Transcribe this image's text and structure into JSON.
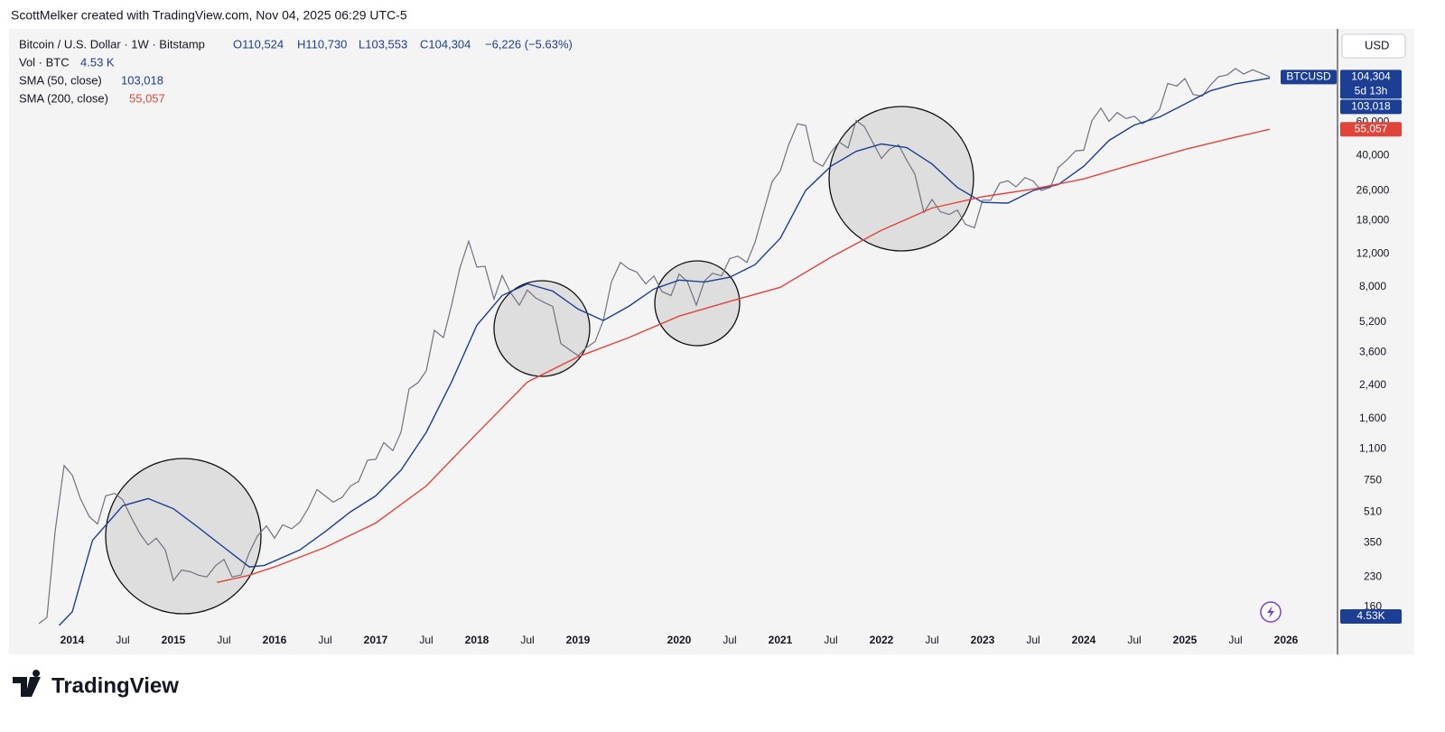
{
  "header": "ScottMelker created with TradingView.com, Nov 04, 2025 06:29 UTC-5",
  "logo": "TradingView",
  "chart_data": {
    "type": "line",
    "log_scale": true,
    "grid": false,
    "currency": "USD",
    "xlim": [
      2013.375,
      2026.5
    ],
    "ylim": [
      127,
      188000
    ],
    "xticks": [
      2014,
      {
        "value": 2014.5,
        "label": "Jul"
      },
      2015,
      {
        "value": 2015.5,
        "label": "Jul"
      },
      2016,
      {
        "value": 2016.5,
        "label": "Jul"
      },
      2017,
      {
        "value": 2017.5,
        "label": "Jul"
      },
      2018,
      {
        "value": 2018.5,
        "label": "Jul"
      },
      2019,
      2020,
      {
        "value": 2020.5,
        "label": "Jul"
      },
      2021,
      {
        "value": 2021.5,
        "label": "Jul"
      },
      2022,
      {
        "value": 2022.5,
        "label": "Jul"
      },
      2023,
      {
        "value": 2023.5,
        "label": "Jul"
      },
      2024,
      {
        "value": 2024.5,
        "label": "Jul"
      },
      2025,
      {
        "value": 2025.5,
        "label": "Jul"
      },
      2026
    ],
    "yticks": [
      160,
      230,
      350,
      510,
      750,
      {
        "value": 1100,
        "label": "1,100"
      },
      {
        "value": 1600,
        "label": "1,600"
      },
      {
        "value": 2400,
        "label": "2,400"
      },
      {
        "value": 3600,
        "label": "3,600"
      },
      {
        "value": 5200,
        "label": "5,200"
      },
      {
        "value": 8000,
        "label": "8,000"
      },
      {
        "value": 12000,
        "label": "12,000"
      },
      {
        "value": 18000,
        "label": "18,000"
      },
      {
        "value": 26000,
        "label": "26,000"
      },
      {
        "value": 40000,
        "label": "40,000"
      },
      {
        "value": 60000,
        "label": "60,000"
      }
    ],
    "legend": {
      "symbol": "Bitcoin / U.S. Dollar · 1W · Bitstamp",
      "open": "O110,524",
      "high": "H110,730",
      "low": "L103,553",
      "close": "C104,304",
      "change": "−6,226 (−5.63%)",
      "volume_name": "Vol · BTC",
      "volume": "4.53 K"
    },
    "volume_label": "4.53K",
    "series": [
      {
        "name": "BTCUSD",
        "color": "#6f7380",
        "last_label": "104,304",
        "countdown": "5d 13h",
        "x": [
          2013.67,
          2013.75,
          2013.83,
          2013.92,
          2014.0,
          2014.08,
          2014.17,
          2014.25,
          2014.33,
          2014.42,
          2014.5,
          2014.58,
          2014.67,
          2014.75,
          2014.83,
          2014.92,
          2015.0,
          2015.08,
          2015.17,
          2015.25,
          2015.33,
          2015.42,
          2015.5,
          2015.58,
          2015.67,
          2015.75,
          2015.83,
          2015.92,
          2016.0,
          2016.08,
          2016.17,
          2016.25,
          2016.33,
          2016.42,
          2016.5,
          2016.58,
          2016.67,
          2016.75,
          2016.83,
          2016.92,
          2017.0,
          2017.08,
          2017.17,
          2017.25,
          2017.33,
          2017.42,
          2017.5,
          2017.58,
          2017.67,
          2017.75,
          2017.83,
          2017.92,
          2018.0,
          2018.08,
          2018.17,
          2018.25,
          2018.33,
          2018.42,
          2018.5,
          2018.58,
          2018.67,
          2018.75,
          2018.83,
          2018.92,
          2019.0,
          2019.08,
          2019.17,
          2019.25,
          2019.33,
          2019.42,
          2019.5,
          2019.58,
          2019.67,
          2019.75,
          2019.83,
          2019.92,
          2020.0,
          2020.08,
          2020.17,
          2020.25,
          2020.33,
          2020.42,
          2020.5,
          2020.58,
          2020.67,
          2020.75,
          2020.83,
          2020.92,
          2021.0,
          2021.08,
          2021.17,
          2021.25,
          2021.33,
          2021.42,
          2021.5,
          2021.58,
          2021.67,
          2021.75,
          2021.83,
          2021.92,
          2022.0,
          2022.08,
          2022.17,
          2022.25,
          2022.33,
          2022.42,
          2022.5,
          2022.58,
          2022.67,
          2022.75,
          2022.83,
          2022.92,
          2023.0,
          2023.08,
          2023.17,
          2023.25,
          2023.33,
          2023.42,
          2023.5,
          2023.58,
          2023.67,
          2023.75,
          2023.83,
          2023.92,
          2024.0,
          2024.08,
          2024.17,
          2024.25,
          2024.33,
          2024.42,
          2024.5,
          2024.58,
          2024.67,
          2024.75,
          2024.83,
          2024.92,
          2025.0,
          2025.08,
          2025.17,
          2025.25,
          2025.33,
          2025.42,
          2025.5,
          2025.58,
          2025.67,
          2025.75,
          2025.84
        ],
        "values": [
          130,
          140,
          400,
          900,
          800,
          600,
          480,
          440,
          620,
          640,
          590,
          480,
          390,
          340,
          370,
          320,
          220,
          250,
          245,
          235,
          230,
          265,
          285,
          230,
          236,
          310,
          380,
          430,
          370,
          435,
          415,
          450,
          530,
          670,
          620,
          575,
          610,
          700,
          740,
          960,
          970,
          1190,
          1080,
          1350,
          2300,
          2480,
          2870,
          4700,
          4300,
          6400,
          10000,
          14000,
          10200,
          10300,
          6900,
          9200,
          7500,
          6400,
          7700,
          7000,
          6600,
          6300,
          4000,
          3700,
          3450,
          3800,
          4100,
          5300,
          8500,
          10800,
          10000,
          9600,
          8300,
          9150,
          7550,
          7200,
          9350,
          8550,
          6400,
          8600,
          9450,
          9150,
          11300,
          11650,
          10800,
          13800,
          19700,
          29000,
          33100,
          45200,
          58800,
          57700,
          37300,
          35000,
          41500,
          47100,
          43800,
          61300,
          57000,
          46300,
          38500,
          43200,
          45500,
          37700,
          31800,
          19900,
          23300,
          20100,
          19400,
          20500,
          17200,
          16500,
          23100,
          23100,
          28500,
          29300,
          27200,
          30500,
          29200,
          26000,
          27000,
          34500,
          37700,
          42300,
          42600,
          61100,
          71300,
          60600,
          67500,
          62700,
          64600,
          58900,
          63300,
          70200,
          96400,
          93400,
          102400,
          84300,
          82500,
          94200,
          104600,
          107100,
          115800,
          108200,
          114000,
          109500,
          104304
        ]
      },
      {
        "name": "SMA (50, close)",
        "color": "#1c3f94",
        "last_label": "103,018",
        "x": [
          2013.87,
          2014.0,
          2014.2,
          2014.5,
          2014.75,
          2015.0,
          2015.25,
          2015.5,
          2015.75,
          2015.9,
          2016.25,
          2016.5,
          2016.75,
          2017.0,
          2017.25,
          2017.5,
          2017.75,
          2018.0,
          2018.25,
          2018.5,
          2018.75,
          2019.0,
          2019.25,
          2019.5,
          2019.75,
          2020.0,
          2020.25,
          2020.5,
          2020.75,
          2021.0,
          2021.25,
          2021.5,
          2021.75,
          2022.0,
          2022.25,
          2022.5,
          2022.75,
          2023.0,
          2023.25,
          2023.5,
          2023.75,
          2024.0,
          2024.25,
          2024.5,
          2024.75,
          2025.0,
          2025.25,
          2025.5,
          2025.84
        ],
        "values": [
          127,
          150,
          360,
          550,
          600,
          530,
          420,
          330,
          260,
          265,
          320,
          400,
          510,
          620,
          850,
          1350,
          2500,
          5000,
          7200,
          8300,
          7600,
          6100,
          5300,
          6300,
          7800,
          8700,
          8500,
          9000,
          10500,
          14500,
          26000,
          35000,
          42000,
          46000,
          44000,
          36000,
          27000,
          22500,
          22300,
          26000,
          28000,
          35000,
          48000,
          58000,
          64000,
          75000,
          88000,
          96000,
          103018
        ]
      },
      {
        "name": "SMA (200, close)",
        "color": "#e0443a",
        "last_label": "55,057",
        "x": [
          2015.43,
          2015.75,
          2016.0,
          2016.5,
          2017.0,
          2017.5,
          2018.0,
          2018.5,
          2019.0,
          2019.5,
          2020.0,
          2020.5,
          2021.0,
          2021.5,
          2022.0,
          2022.5,
          2023.0,
          2023.5,
          2024.0,
          2024.5,
          2025.0,
          2025.5,
          2025.84
        ],
        "values": [
          215,
          235,
          260,
          330,
          445,
          700,
          1330,
          2500,
          3400,
          4300,
          5600,
          6700,
          7960,
          11500,
          16000,
          21000,
          24100,
          26500,
          30000,
          36000,
          43000,
          50000,
          55057
        ]
      }
    ]
  }
}
